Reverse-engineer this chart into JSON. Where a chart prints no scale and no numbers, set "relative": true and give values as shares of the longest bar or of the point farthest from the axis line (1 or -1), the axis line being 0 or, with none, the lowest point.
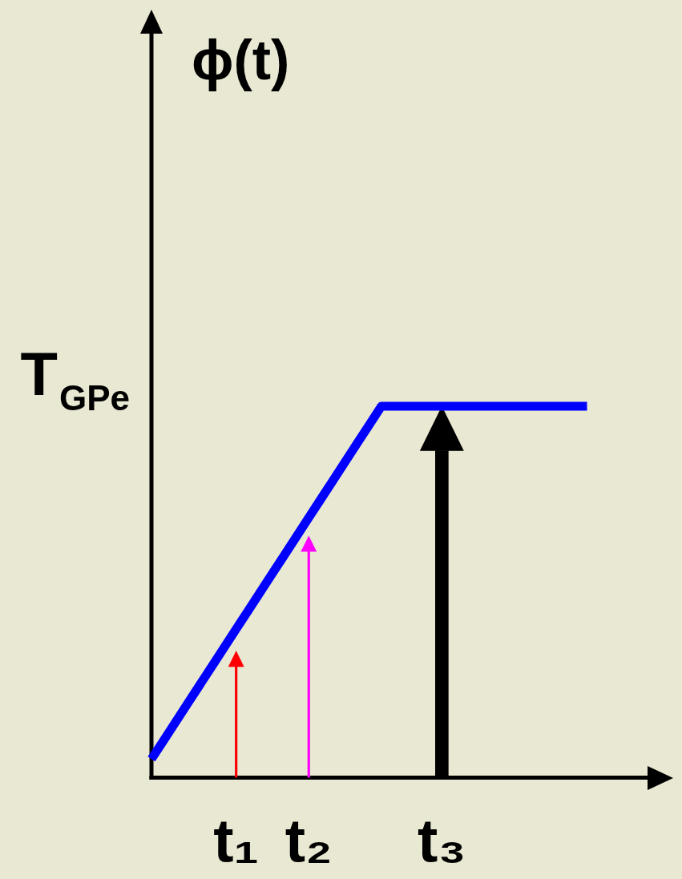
{
  "chart_data": {
    "type": "line",
    "relative": true,
    "marker": "none",
    "categories": [
      null,
      null,
      null,
      null,
      null,
      null,
      null,
      "t₁",
      null,
      null,
      null,
      null,
      null,
      "t₂",
      null,
      null,
      null,
      null,
      null,
      null,
      null,
      null,
      null,
      null,
      "t₃",
      null,
      null,
      null,
      null,
      null,
      null,
      null,
      null,
      null,
      null,
      null,
      null,
      null,
      null,
      null,
      null,
      null
    ],
    "series": [
      {
        "color": "#0000ff",
        "values": [
          0.05,
          0.1,
          0.15,
          0.2,
          0.25,
          0.3,
          0.35,
          0.4,
          0.45,
          0.5,
          0.55,
          0.6,
          0.65,
          0.7,
          0.75,
          0.8,
          0.85,
          0.9,
          0.95,
          1,
          1,
          1,
          1,
          1,
          1,
          1,
          1,
          1,
          1,
          1,
          1,
          1,
          1,
          1,
          1,
          1,
          1,
          null,
          null,
          null,
          null,
          null
        ]
      },
      {
        "type": "bar",
        "values": [
          null,
          null,
          null,
          null,
          null,
          null,
          null,
          0.3,
          null,
          null,
          null,
          null,
          null,
          0.61,
          null,
          null,
          null,
          null,
          null,
          null,
          null,
          null,
          null,
          null,
          0.88,
          null,
          null,
          null,
          null,
          null,
          null,
          null,
          null,
          null,
          null,
          null,
          null,
          null,
          null,
          null,
          null,
          null
        ],
        "colors": [
          null,
          null,
          null,
          null,
          null,
          null,
          null,
          "#ff0000",
          null,
          null,
          null,
          null,
          null,
          "#ff00ff",
          null,
          null,
          null,
          null,
          null,
          null,
          null,
          null,
          null,
          null,
          "#000000",
          null,
          null,
          null,
          null,
          null,
          null,
          null,
          null,
          null,
          null,
          null,
          null,
          null,
          null,
          null,
          null,
          null
        ]
      },
      {
        "type": "scatter",
        "marker": "triangle",
        "values": [
          null,
          null,
          null,
          null,
          null,
          null,
          null,
          0.32,
          null,
          null,
          null,
          null,
          null,
          0.63,
          null,
          null,
          null,
          null,
          null,
          null,
          null,
          null,
          null,
          null,
          0.94,
          null,
          null,
          null,
          null,
          null,
          null,
          null,
          null,
          null,
          null,
          null,
          null,
          null,
          null,
          null,
          null,
          null
        ],
        "sizes": [
          null,
          null,
          null,
          null,
          null,
          null,
          null,
          0.13,
          null,
          null,
          null,
          null,
          null,
          0.13,
          null,
          null,
          null,
          null,
          null,
          null,
          null,
          null,
          null,
          null,
          1,
          null,
          null,
          null,
          null,
          null,
          null,
          null,
          null,
          null,
          null,
          null,
          null,
          null,
          null,
          null,
          null,
          null
        ],
        "colors": [
          null,
          null,
          null,
          null,
          null,
          null,
          null,
          "#ff0000",
          null,
          null,
          null,
          null,
          null,
          "#ff00ff",
          null,
          null,
          null,
          null,
          null,
          null,
          null,
          null,
          null,
          null,
          "#000000",
          null,
          null,
          null,
          null,
          null,
          null,
          null,
          null,
          null,
          null,
          null,
          null,
          null,
          null,
          null,
          null,
          null
        ]
      }
    ],
    "annotations": [
      "ϕ(t)",
      "T$_{GPe}$"
    ]
  }
}
